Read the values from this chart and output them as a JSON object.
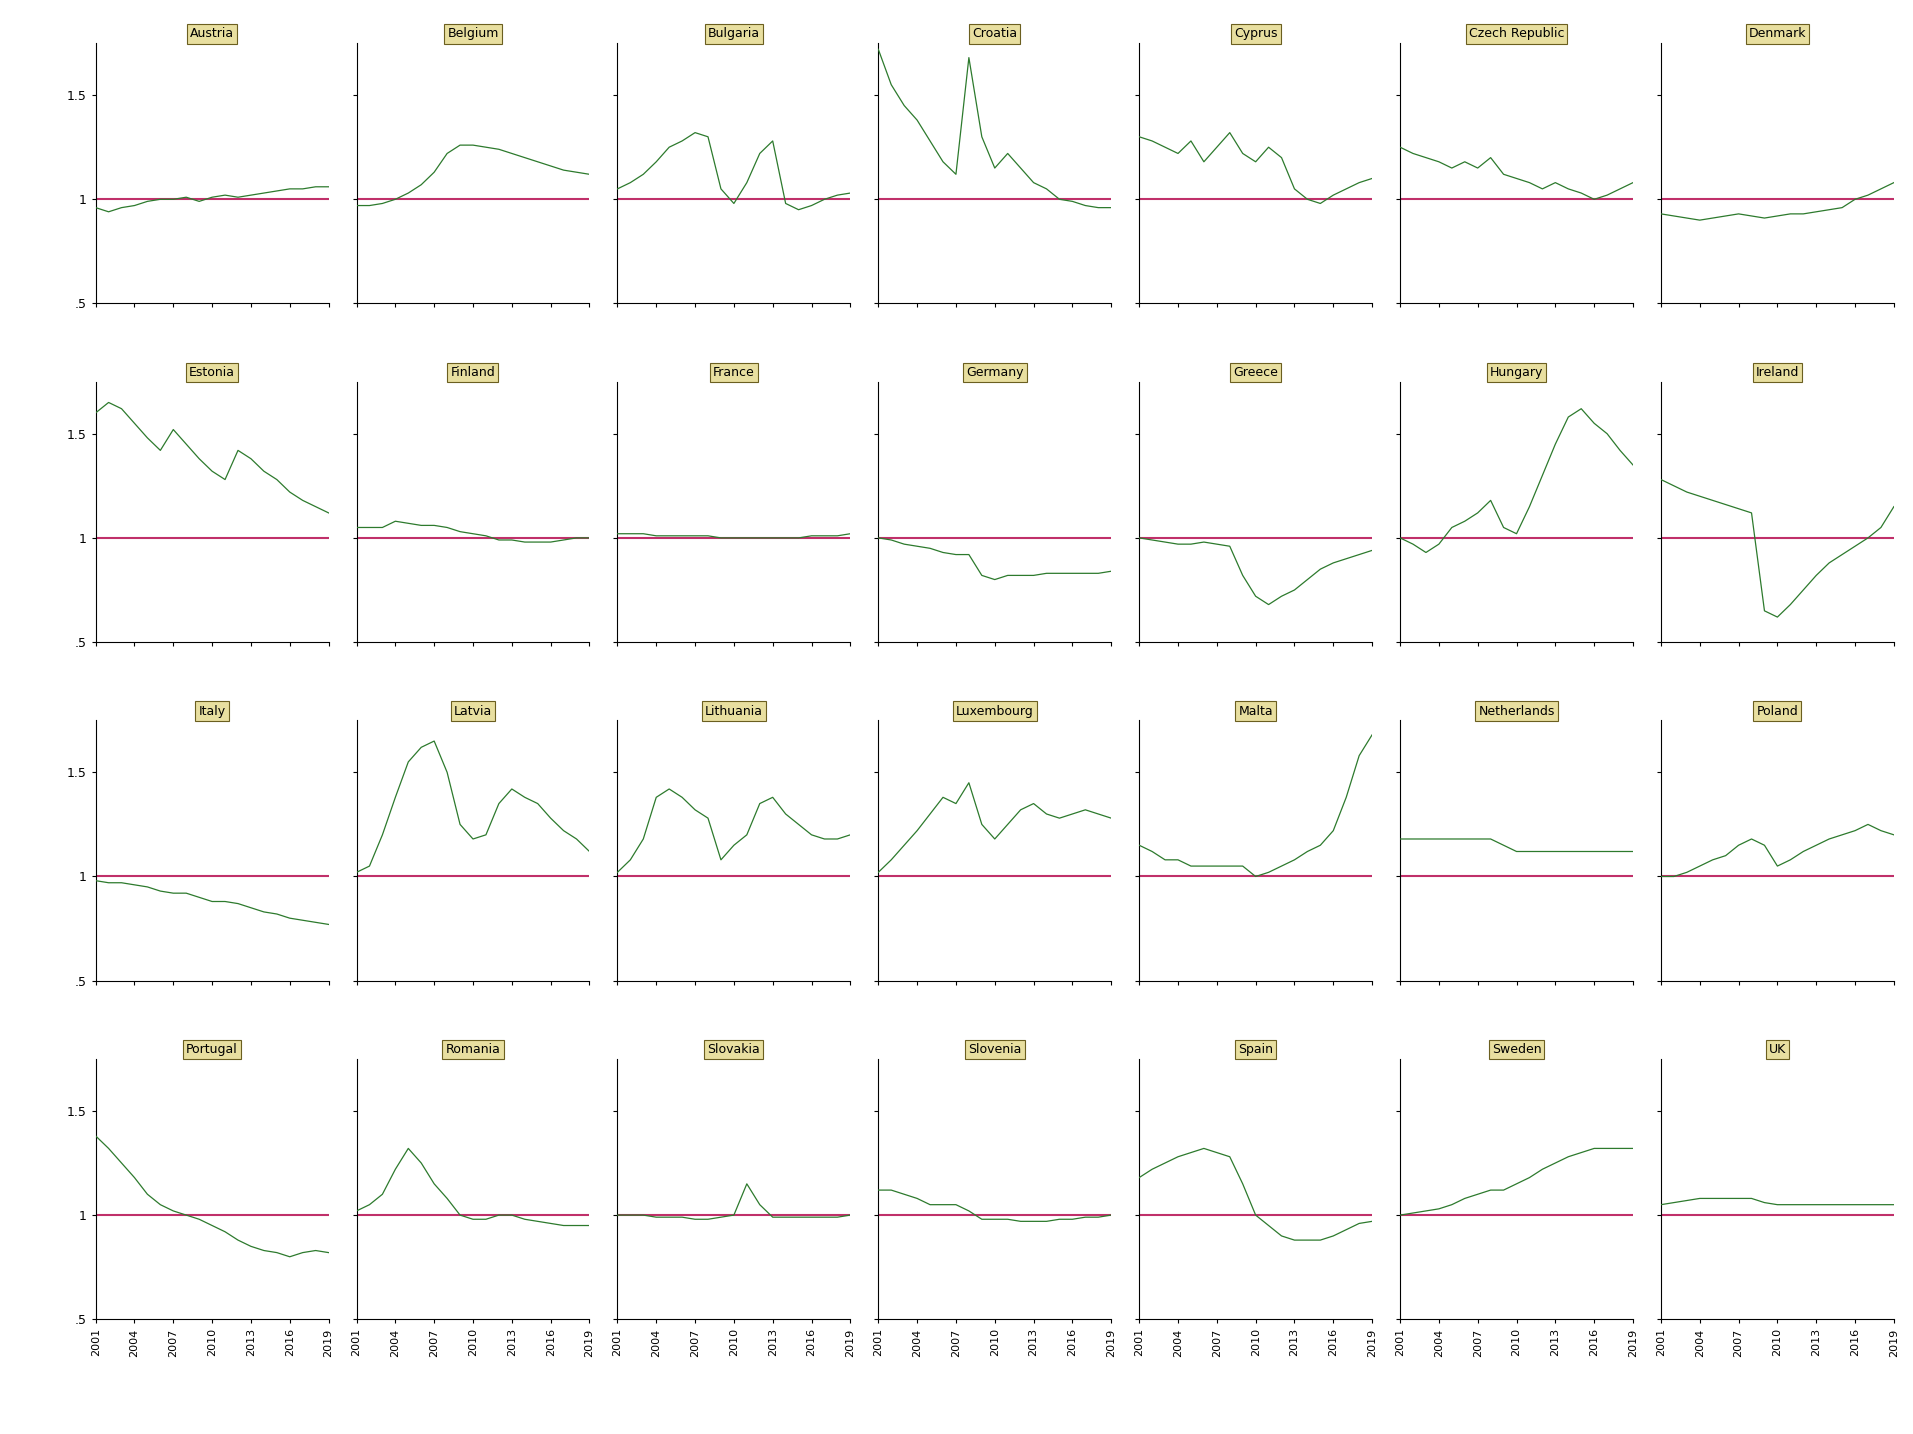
{
  "years": [
    2001,
    2002,
    2003,
    2004,
    2005,
    2006,
    2007,
    2008,
    2009,
    2010,
    2011,
    2012,
    2013,
    2014,
    2015,
    2016,
    2017,
    2018,
    2019
  ],
  "countries": [
    "Austria",
    "Belgium",
    "Bulgaria",
    "Croatia",
    "Cyprus",
    "Czech Republic",
    "Denmark",
    "Estonia",
    "Finland",
    "France",
    "Germany",
    "Greece",
    "Hungary",
    "Ireland",
    "Italy",
    "Latvia",
    "Lithuania",
    "Luxembourg",
    "Malta",
    "Netherlands",
    "Poland",
    "Portugal",
    "Romania",
    "Slovakia",
    "Slovenia",
    "Spain",
    "Sweden",
    "UK"
  ],
  "data": {
    "Austria": [
      0.96,
      0.94,
      0.96,
      0.97,
      0.99,
      1.0,
      1.0,
      1.01,
      0.99,
      1.01,
      1.02,
      1.01,
      1.02,
      1.03,
      1.04,
      1.05,
      1.05,
      1.06,
      1.06
    ],
    "Belgium": [
      0.97,
      0.97,
      0.98,
      1.0,
      1.03,
      1.07,
      1.13,
      1.22,
      1.26,
      1.26,
      1.25,
      1.24,
      1.22,
      1.2,
      1.18,
      1.16,
      1.14,
      1.13,
      1.12
    ],
    "Bulgaria": [
      1.05,
      1.08,
      1.12,
      1.18,
      1.25,
      1.28,
      1.32,
      1.3,
      1.05,
      0.98,
      1.08,
      1.22,
      1.28,
      0.98,
      0.95,
      0.97,
      1.0,
      1.02,
      1.03
    ],
    "Croatia": [
      1.72,
      1.55,
      1.45,
      1.38,
      1.28,
      1.18,
      1.12,
      1.68,
      1.3,
      1.15,
      1.22,
      1.15,
      1.08,
      1.05,
      1.0,
      0.99,
      0.97,
      0.96,
      0.96
    ],
    "Cyprus": [
      1.3,
      1.28,
      1.25,
      1.22,
      1.28,
      1.18,
      1.25,
      1.32,
      1.22,
      1.18,
      1.25,
      1.2,
      1.05,
      1.0,
      0.98,
      1.02,
      1.05,
      1.08,
      1.1
    ],
    "Czech Republic": [
      1.25,
      1.22,
      1.2,
      1.18,
      1.15,
      1.18,
      1.15,
      1.2,
      1.12,
      1.1,
      1.08,
      1.05,
      1.08,
      1.05,
      1.03,
      1.0,
      1.02,
      1.05,
      1.08
    ],
    "Denmark": [
      0.93,
      0.92,
      0.91,
      0.9,
      0.91,
      0.92,
      0.93,
      0.92,
      0.91,
      0.92,
      0.93,
      0.93,
      0.94,
      0.95,
      0.96,
      1.0,
      1.02,
      1.05,
      1.08
    ],
    "Estonia": [
      1.6,
      1.65,
      1.62,
      1.55,
      1.48,
      1.42,
      1.52,
      1.45,
      1.38,
      1.32,
      1.28,
      1.42,
      1.38,
      1.32,
      1.28,
      1.22,
      1.18,
      1.15,
      1.12
    ],
    "Finland": [
      1.05,
      1.05,
      1.05,
      1.08,
      1.07,
      1.06,
      1.06,
      1.05,
      1.03,
      1.02,
      1.01,
      0.99,
      0.99,
      0.98,
      0.98,
      0.98,
      0.99,
      1.0,
      1.0
    ],
    "France": [
      1.02,
      1.02,
      1.02,
      1.01,
      1.01,
      1.01,
      1.01,
      1.01,
      1.0,
      1.0,
      1.0,
      1.0,
      1.0,
      1.0,
      1.0,
      1.01,
      1.01,
      1.01,
      1.02
    ],
    "Germany": [
      1.0,
      0.99,
      0.97,
      0.96,
      0.95,
      0.93,
      0.92,
      0.92,
      0.82,
      0.8,
      0.82,
      0.82,
      0.82,
      0.83,
      0.83,
      0.83,
      0.83,
      0.83,
      0.84
    ],
    "Greece": [
      1.0,
      0.99,
      0.98,
      0.97,
      0.97,
      0.98,
      0.97,
      0.96,
      0.82,
      0.72,
      0.68,
      0.72,
      0.75,
      0.8,
      0.85,
      0.88,
      0.9,
      0.92,
      0.94
    ],
    "Hungary": [
      1.0,
      0.97,
      0.93,
      0.97,
      1.05,
      1.08,
      1.12,
      1.18,
      1.05,
      1.02,
      1.15,
      1.3,
      1.45,
      1.58,
      1.62,
      1.55,
      1.5,
      1.42,
      1.35
    ],
    "Ireland": [
      1.28,
      1.25,
      1.22,
      1.2,
      1.18,
      1.16,
      1.14,
      1.12,
      0.65,
      0.62,
      0.68,
      0.75,
      0.82,
      0.88,
      0.92,
      0.96,
      1.0,
      1.05,
      1.15
    ],
    "Italy": [
      0.98,
      0.97,
      0.97,
      0.96,
      0.95,
      0.93,
      0.92,
      0.92,
      0.9,
      0.88,
      0.88,
      0.87,
      0.85,
      0.83,
      0.82,
      0.8,
      0.79,
      0.78,
      0.77
    ],
    "Latvia": [
      1.02,
      1.05,
      1.2,
      1.38,
      1.55,
      1.62,
      1.65,
      1.5,
      1.25,
      1.18,
      1.2,
      1.35,
      1.42,
      1.38,
      1.35,
      1.28,
      1.22,
      1.18,
      1.12
    ],
    "Lithuania": [
      1.02,
      1.08,
      1.18,
      1.38,
      1.42,
      1.38,
      1.32,
      1.28,
      1.08,
      1.15,
      1.2,
      1.35,
      1.38,
      1.3,
      1.25,
      1.2,
      1.18,
      1.18,
      1.2
    ],
    "Luxembourg": [
      1.02,
      1.08,
      1.15,
      1.22,
      1.3,
      1.38,
      1.35,
      1.45,
      1.25,
      1.18,
      1.25,
      1.32,
      1.35,
      1.3,
      1.28,
      1.3,
      1.32,
      1.3,
      1.28
    ],
    "Malta": [
      1.15,
      1.12,
      1.08,
      1.08,
      1.05,
      1.05,
      1.05,
      1.05,
      1.05,
      1.0,
      1.02,
      1.05,
      1.08,
      1.12,
      1.15,
      1.22,
      1.38,
      1.58,
      1.68
    ],
    "Netherlands": [
      1.18,
      1.18,
      1.18,
      1.18,
      1.18,
      1.18,
      1.18,
      1.18,
      1.15,
      1.12,
      1.12,
      1.12,
      1.12,
      1.12,
      1.12,
      1.12,
      1.12,
      1.12,
      1.12
    ],
    "Poland": [
      1.0,
      1.0,
      1.02,
      1.05,
      1.08,
      1.1,
      1.15,
      1.18,
      1.15,
      1.05,
      1.08,
      1.12,
      1.15,
      1.18,
      1.2,
      1.22,
      1.25,
      1.22,
      1.2
    ],
    "Portugal": [
      1.38,
      1.32,
      1.25,
      1.18,
      1.1,
      1.05,
      1.02,
      1.0,
      0.98,
      0.95,
      0.92,
      0.88,
      0.85,
      0.83,
      0.82,
      0.8,
      0.82,
      0.83,
      0.82
    ],
    "Romania": [
      1.02,
      1.05,
      1.1,
      1.22,
      1.32,
      1.25,
      1.15,
      1.08,
      1.0,
      0.98,
      0.98,
      1.0,
      1.0,
      0.98,
      0.97,
      0.96,
      0.95,
      0.95,
      0.95
    ],
    "Slovakia": [
      1.0,
      1.0,
      1.0,
      0.99,
      0.99,
      0.99,
      0.98,
      0.98,
      0.99,
      1.0,
      1.15,
      1.05,
      0.99,
      0.99,
      0.99,
      0.99,
      0.99,
      0.99,
      1.0
    ],
    "Slovenia": [
      1.12,
      1.12,
      1.1,
      1.08,
      1.05,
      1.05,
      1.05,
      1.02,
      0.98,
      0.98,
      0.98,
      0.97,
      0.97,
      0.97,
      0.98,
      0.98,
      0.99,
      0.99,
      1.0
    ],
    "Spain": [
      1.18,
      1.22,
      1.25,
      1.28,
      1.3,
      1.32,
      1.3,
      1.28,
      1.15,
      1.0,
      0.95,
      0.9,
      0.88,
      0.88,
      0.88,
      0.9,
      0.93,
      0.96,
      0.97
    ],
    "Sweden": [
      1.0,
      1.01,
      1.02,
      1.03,
      1.05,
      1.08,
      1.1,
      1.12,
      1.12,
      1.15,
      1.18,
      1.22,
      1.25,
      1.28,
      1.3,
      1.32,
      1.32,
      1.32,
      1.32
    ],
    "UK": [
      1.05,
      1.06,
      1.07,
      1.08,
      1.08,
      1.08,
      1.08,
      1.08,
      1.06,
      1.05,
      1.05,
      1.05,
      1.05,
      1.05,
      1.05,
      1.05,
      1.05,
      1.05,
      1.05
    ]
  },
  "line_color": "#2d7a2d",
  "ref_line_color": "#c0306a",
  "label_bg_color": "#e8dfa0",
  "label_border_color": "#6b5f20",
  "ylim": [
    0.5,
    1.75
  ],
  "yticks": [
    0.5,
    1.0,
    1.5
  ],
  "yticklabels": [
    ".5",
    "1",
    "1.5"
  ],
  "bg_color": "#ffffff",
  "xtick_years": [
    2001,
    2004,
    2007,
    2010,
    2013,
    2016,
    2019
  ]
}
